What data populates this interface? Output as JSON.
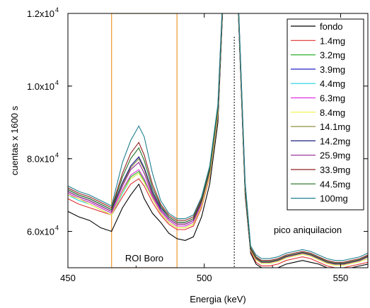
{
  "chart_data": {
    "type": "line",
    "title": "",
    "xlabel": "Energia (keV)",
    "ylabel": "cuentas x 1600 s",
    "xlim": [
      450,
      560
    ],
    "ylim": [
      5000,
      12000
    ],
    "xticks": [
      450,
      500,
      550
    ],
    "xtick_labels": [
      "450",
      "500",
      "550"
    ],
    "yticks": [
      6000,
      8000,
      10000,
      12000
    ],
    "ytick_labels": [
      "6.0x10",
      "8.0x10",
      "1.0x10",
      "1.2x10"
    ],
    "ytick_exponent": "4",
    "grid": false,
    "legend_position": "top-right",
    "roi": {
      "x0": 466,
      "x1": 490,
      "label": "ROI Boro",
      "color": "#f0a040"
    },
    "marker_line_x": 511,
    "annotation": "pico aniquilacion",
    "x": [
      450,
      454,
      458,
      462,
      466,
      470,
      473,
      476,
      478,
      481,
      484,
      487,
      490,
      493,
      496,
      499,
      502,
      505,
      507,
      509,
      511,
      513,
      515,
      517,
      519,
      521,
      524,
      527,
      530,
      533,
      536,
      539,
      542,
      545,
      548,
      551,
      554,
      557,
      560
    ],
    "series": [
      {
        "name": "fondo",
        "color": "#000000",
        "values": [
          6550,
          6400,
          6300,
          6100,
          6000,
          6650,
          7000,
          7300,
          6900,
          6500,
          6250,
          5950,
          5800,
          5750,
          5850,
          6400,
          7300,
          9000,
          12500,
          16000,
          15000,
          11000,
          7000,
          5400,
          5100,
          5000,
          5000,
          5000,
          5100,
          5150,
          5200,
          5150,
          5100,
          5000,
          4950,
          4950,
          5000,
          5050,
          5100
        ]
      },
      {
        "name": "1.4mg",
        "color": "#e03030",
        "values": [
          6900,
          6750,
          6650,
          6550,
          6450,
          6950,
          7300,
          7450,
          7250,
          6800,
          6450,
          6200,
          6050,
          6050,
          6150,
          6650,
          7500,
          9200,
          12600,
          16100,
          15100,
          11100,
          7100,
          5450,
          5150,
          5050,
          5050,
          5100,
          5200,
          5250,
          5300,
          5250,
          5150,
          5050,
          5000,
          5000,
          5050,
          5100,
          5150
        ]
      },
      {
        "name": "3.2mg",
        "color": "#30b030",
        "values": [
          7050,
          6900,
          6800,
          6650,
          6500,
          7100,
          7500,
          7650,
          7400,
          6950,
          6550,
          6300,
          6150,
          6150,
          6250,
          6750,
          7600,
          9300,
          12700,
          16200,
          15200,
          11200,
          7200,
          5500,
          5250,
          5150,
          5150,
          5200,
          5300,
          5350,
          5400,
          5350,
          5250,
          5150,
          5100,
          5100,
          5150,
          5200,
          5300
        ]
      },
      {
        "name": "3.9mg",
        "color": "#2020c0",
        "values": [
          7100,
          6950,
          6850,
          6700,
          6550,
          7300,
          7800,
          8050,
          7750,
          7100,
          6600,
          6350,
          6200,
          6200,
          6300,
          6800,
          7650,
          9350,
          12700,
          16200,
          15200,
          11200,
          7200,
          5500,
          5250,
          5150,
          5150,
          5200,
          5300,
          5350,
          5400,
          5350,
          5250,
          5150,
          5100,
          5100,
          5150,
          5200,
          5300
        ]
      },
      {
        "name": "4.4mg",
        "color": "#20d0e0",
        "values": [
          7000,
          6850,
          6750,
          6600,
          6450,
          7050,
          7450,
          7600,
          7350,
          6900,
          6500,
          6250,
          6100,
          6100,
          6200,
          6700,
          7550,
          9250,
          12650,
          16150,
          15150,
          11150,
          7150,
          5480,
          5220,
          5120,
          5120,
          5170,
          5270,
          5320,
          5370,
          5320,
          5220,
          5120,
          5070,
          5070,
          5120,
          5170,
          5250
        ]
      },
      {
        "name": "6.3mg",
        "color": "#e030e0",
        "values": [
          7050,
          6900,
          6800,
          6650,
          6500,
          7150,
          7550,
          7700,
          7450,
          6950,
          6550,
          6300,
          6150,
          6150,
          6250,
          6750,
          7600,
          9300,
          12700,
          16200,
          15200,
          11200,
          7200,
          5500,
          5250,
          5150,
          5150,
          5200,
          5300,
          5350,
          5400,
          5350,
          5250,
          5150,
          5100,
          5100,
          5150,
          5200,
          5300
        ]
      },
      {
        "name": "8.4mg",
        "color": "#f0f040",
        "values": [
          7000,
          6900,
          6750,
          6600,
          6450,
          7100,
          7450,
          7600,
          7350,
          6900,
          6500,
          6250,
          6100,
          6100,
          6200,
          6700,
          7550,
          9250,
          12650,
          16150,
          15150,
          11150,
          7150,
          5480,
          5220,
          5120,
          5120,
          5170,
          5270,
          5320,
          5370,
          5320,
          5220,
          5120,
          5070,
          5070,
          5120,
          5170,
          5250
        ]
      },
      {
        "name": "14.1mg",
        "color": "#909040",
        "values": [
          7100,
          6950,
          6850,
          6700,
          6550,
          7300,
          7750,
          8000,
          7700,
          7050,
          6600,
          6350,
          6200,
          6200,
          6300,
          6800,
          7650,
          9350,
          12700,
          16200,
          15200,
          11200,
          7200,
          5500,
          5250,
          5150,
          5150,
          5200,
          5300,
          5350,
          5400,
          5350,
          5250,
          5150,
          5100,
          5100,
          5150,
          5200,
          5300
        ]
      },
      {
        "name": "14.2mg",
        "color": "#202080",
        "values": [
          7150,
          7000,
          6900,
          6750,
          6600,
          7350,
          7800,
          8050,
          7750,
          7100,
          6650,
          6400,
          6250,
          6250,
          6350,
          6850,
          7700,
          9400,
          12750,
          16250,
          15250,
          11250,
          7250,
          5520,
          5270,
          5170,
          5170,
          5220,
          5320,
          5370,
          5420,
          5370,
          5270,
          5170,
          5120,
          5120,
          5170,
          5220,
          5320
        ]
      },
      {
        "name": "25.9mg",
        "color": "#902090",
        "values": [
          7100,
          6950,
          6850,
          6700,
          6550,
          7250,
          7700,
          7900,
          7600,
          7000,
          6600,
          6350,
          6200,
          6200,
          6300,
          6800,
          7650,
          9350,
          12700,
          16200,
          15200,
          11200,
          7200,
          5500,
          5250,
          5150,
          5150,
          5200,
          5300,
          5350,
          5400,
          5350,
          5250,
          5150,
          5100,
          5100,
          5150,
          5200,
          5300
        ]
      },
      {
        "name": "33.9mg",
        "color": "#902020",
        "values": [
          7200,
          7050,
          6950,
          6800,
          6650,
          7600,
          8150,
          8450,
          8100,
          7300,
          6750,
          6450,
          6300,
          6300,
          6400,
          6900,
          7750,
          9450,
          12800,
          16300,
          15300,
          11300,
          7300,
          5550,
          5300,
          5200,
          5200,
          5250,
          5350,
          5400,
          5450,
          5400,
          5300,
          5200,
          5150,
          5150,
          5200,
          5250,
          5350
        ]
      },
      {
        "name": "44.5mg",
        "color": "#207020",
        "values": [
          7150,
          7000,
          6900,
          6750,
          6600,
          7500,
          8000,
          8300,
          7950,
          7200,
          6700,
          6400,
          6250,
          6250,
          6350,
          6850,
          7700,
          9400,
          12750,
          16250,
          15250,
          11250,
          7250,
          5520,
          5270,
          5170,
          5170,
          5220,
          5320,
          5370,
          5420,
          5370,
          5270,
          5170,
          5120,
          5120,
          5170,
          5220,
          5320
        ]
      },
      {
        "name": "100mg",
        "color": "#208090",
        "values": [
          7250,
          7100,
          7000,
          6850,
          6700,
          7900,
          8500,
          8900,
          8600,
          7600,
          6850,
          6500,
          6350,
          6350,
          6450,
          6950,
          7800,
          9500,
          12850,
          16350,
          15350,
          11350,
          7350,
          5600,
          5350,
          5250,
          5250,
          5300,
          5400,
          5450,
          5500,
          5450,
          5350,
          5250,
          5200,
          5200,
          5250,
          5300,
          5400
        ]
      }
    ]
  }
}
